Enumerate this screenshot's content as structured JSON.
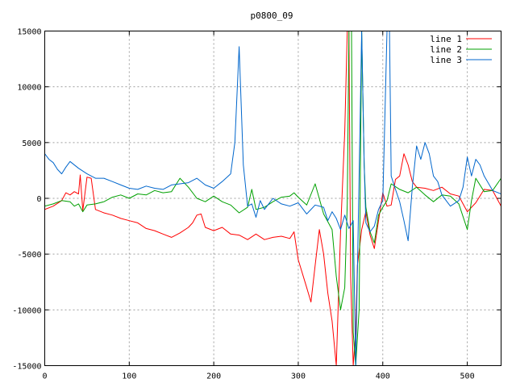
{
  "chart_data": {
    "type": "line",
    "title": "p0800_09",
    "xlabel": "",
    "ylabel": "",
    "xlim": [
      0,
      540
    ],
    "ylim": [
      -15000,
      15000
    ],
    "grid": true,
    "legend_position": "top-right",
    "x_ticks": [
      "0",
      "100",
      "200",
      "300",
      "400",
      "500"
    ],
    "y_ticks": [
      "15000",
      "10000",
      "5000",
      "0",
      "-5000",
      "-10000",
      "-15000"
    ],
    "series": [
      {
        "name": "line 1",
        "color": "#ff0000",
        "points": [
          [
            0,
            -1000
          ],
          [
            10,
            -700
          ],
          [
            20,
            -200
          ],
          [
            25,
            500
          ],
          [
            30,
            300
          ],
          [
            35,
            600
          ],
          [
            40,
            400
          ],
          [
            42,
            2100
          ],
          [
            45,
            -1100
          ],
          [
            50,
            1900
          ],
          [
            55,
            1800
          ],
          [
            60,
            -1000
          ],
          [
            70,
            -1300
          ],
          [
            80,
            -1500
          ],
          [
            90,
            -1800
          ],
          [
            100,
            -2000
          ],
          [
            110,
            -2200
          ],
          [
            120,
            -2700
          ],
          [
            130,
            -2900
          ],
          [
            140,
            -3200
          ],
          [
            150,
            -3500
          ],
          [
            160,
            -3100
          ],
          [
            170,
            -2600
          ],
          [
            175,
            -2200
          ],
          [
            180,
            -1500
          ],
          [
            185,
            -1400
          ],
          [
            190,
            -2600
          ],
          [
            200,
            -2900
          ],
          [
            210,
            -2600
          ],
          [
            220,
            -3200
          ],
          [
            230,
            -3300
          ],
          [
            240,
            -3700
          ],
          [
            250,
            -3200
          ],
          [
            260,
            -3700
          ],
          [
            270,
            -3500
          ],
          [
            280,
            -3400
          ],
          [
            290,
            -3600
          ],
          [
            295,
            -3000
          ],
          [
            300,
            -5500
          ],
          [
            310,
            -8000
          ],
          [
            315,
            -9300
          ],
          [
            320,
            -6000
          ],
          [
            325,
            -2800
          ],
          [
            330,
            -5000
          ],
          [
            335,
            -8500
          ],
          [
            340,
            -11000
          ],
          [
            345,
            -15000
          ],
          [
            350,
            -3000
          ],
          [
            355,
            6000
          ],
          [
            358,
            15000
          ],
          [
            360,
            15000
          ],
          [
            362,
            -7000
          ],
          [
            365,
            -15000
          ],
          [
            368,
            -12000
          ],
          [
            370,
            -6000
          ],
          [
            375,
            -2800
          ],
          [
            380,
            -1200
          ],
          [
            385,
            -3300
          ],
          [
            390,
            -4500
          ],
          [
            395,
            -2000
          ],
          [
            400,
            500
          ],
          [
            405,
            -700
          ],
          [
            410,
            -600
          ],
          [
            415,
            1700
          ],
          [
            420,
            2000
          ],
          [
            425,
            4000
          ],
          [
            430,
            3000
          ],
          [
            435,
            1500
          ],
          [
            440,
            1000
          ],
          [
            450,
            900
          ],
          [
            460,
            700
          ],
          [
            470,
            1000
          ],
          [
            480,
            400
          ],
          [
            490,
            200
          ],
          [
            500,
            -1200
          ],
          [
            510,
            -400
          ],
          [
            520,
            800
          ],
          [
            530,
            700
          ],
          [
            540,
            -700
          ]
        ]
      },
      {
        "name": "line 2",
        "color": "#00a000",
        "points": [
          [
            0,
            -700
          ],
          [
            10,
            -500
          ],
          [
            20,
            -200
          ],
          [
            30,
            -300
          ],
          [
            35,
            -700
          ],
          [
            40,
            -500
          ],
          [
            45,
            -1200
          ],
          [
            50,
            -600
          ],
          [
            60,
            -500
          ],
          [
            70,
            -300
          ],
          [
            80,
            100
          ],
          [
            90,
            300
          ],
          [
            100,
            0
          ],
          [
            110,
            400
          ],
          [
            120,
            300
          ],
          [
            130,
            700
          ],
          [
            140,
            500
          ],
          [
            150,
            600
          ],
          [
            160,
            1800
          ],
          [
            170,
            1000
          ],
          [
            180,
            0
          ],
          [
            190,
            -300
          ],
          [
            200,
            200
          ],
          [
            210,
            -300
          ],
          [
            220,
            -600
          ],
          [
            230,
            -1300
          ],
          [
            240,
            -800
          ],
          [
            245,
            800
          ],
          [
            250,
            -1000
          ],
          [
            260,
            -800
          ],
          [
            270,
            -300
          ],
          [
            280,
            100
          ],
          [
            290,
            200
          ],
          [
            295,
            500
          ],
          [
            300,
            100
          ],
          [
            310,
            -600
          ],
          [
            320,
            1300
          ],
          [
            330,
            -1400
          ],
          [
            340,
            -2800
          ],
          [
            345,
            -7000
          ],
          [
            350,
            -10000
          ],
          [
            355,
            -8000
          ],
          [
            358,
            -500
          ],
          [
            360,
            15000
          ],
          [
            363,
            15000
          ],
          [
            365,
            -12000
          ],
          [
            368,
            -15000
          ],
          [
            372,
            -10000
          ],
          [
            375,
            15000
          ],
          [
            378,
            3000
          ],
          [
            380,
            -800
          ],
          [
            385,
            -3000
          ],
          [
            390,
            -4000
          ],
          [
            395,
            -1500
          ],
          [
            400,
            -800
          ],
          [
            405,
            -200
          ],
          [
            410,
            1300
          ],
          [
            420,
            800
          ],
          [
            430,
            500
          ],
          [
            440,
            1000
          ],
          [
            450,
            300
          ],
          [
            460,
            -300
          ],
          [
            470,
            300
          ],
          [
            480,
            200
          ],
          [
            490,
            -500
          ],
          [
            500,
            -2800
          ],
          [
            505,
            -200
          ],
          [
            510,
            1800
          ],
          [
            520,
            600
          ],
          [
            530,
            700
          ],
          [
            540,
            1800
          ]
        ]
      },
      {
        "name": "line 3",
        "color": "#0066cc",
        "points": [
          [
            0,
            4000
          ],
          [
            5,
            3500
          ],
          [
            10,
            3200
          ],
          [
            15,
            2600
          ],
          [
            20,
            2200
          ],
          [
            25,
            2800
          ],
          [
            30,
            3300
          ],
          [
            40,
            2700
          ],
          [
            50,
            2200
          ],
          [
            60,
            1800
          ],
          [
            70,
            1800
          ],
          [
            80,
            1500
          ],
          [
            90,
            1200
          ],
          [
            100,
            900
          ],
          [
            110,
            800
          ],
          [
            120,
            1100
          ],
          [
            130,
            900
          ],
          [
            140,
            800
          ],
          [
            150,
            1200
          ],
          [
            160,
            1300
          ],
          [
            170,
            1400
          ],
          [
            180,
            1800
          ],
          [
            190,
            1200
          ],
          [
            200,
            900
          ],
          [
            210,
            1500
          ],
          [
            220,
            2200
          ],
          [
            225,
            5000
          ],
          [
            230,
            13600
          ],
          [
            235,
            3000
          ],
          [
            240,
            -700
          ],
          [
            245,
            -500
          ],
          [
            250,
            -1700
          ],
          [
            255,
            -200
          ],
          [
            260,
            -1000
          ],
          [
            270,
            0
          ],
          [
            280,
            -500
          ],
          [
            290,
            -700
          ],
          [
            300,
            -400
          ],
          [
            310,
            -1400
          ],
          [
            320,
            -600
          ],
          [
            330,
            -800
          ],
          [
            335,
            -2000
          ],
          [
            340,
            -1200
          ],
          [
            345,
            -1800
          ],
          [
            350,
            -2800
          ],
          [
            355,
            -1500
          ],
          [
            360,
            -2700
          ],
          [
            365,
            -2000
          ],
          [
            368,
            -15000
          ],
          [
            372,
            2000
          ],
          [
            375,
            15000
          ],
          [
            378,
            3000
          ],
          [
            380,
            -2200
          ],
          [
            385,
            -3000
          ],
          [
            390,
            -2500
          ],
          [
            395,
            -1000
          ],
          [
            400,
            -200
          ],
          [
            405,
            15000
          ],
          [
            408,
            15000
          ],
          [
            410,
            2000
          ],
          [
            415,
            800
          ],
          [
            420,
            -300
          ],
          [
            425,
            -2000
          ],
          [
            430,
            -3800
          ],
          [
            435,
            1000
          ],
          [
            440,
            4700
          ],
          [
            445,
            3500
          ],
          [
            450,
            5000
          ],
          [
            455,
            4000
          ],
          [
            460,
            2000
          ],
          [
            465,
            1500
          ],
          [
            470,
            300
          ],
          [
            480,
            -700
          ],
          [
            490,
            -200
          ],
          [
            495,
            1000
          ],
          [
            500,
            3700
          ],
          [
            505,
            2000
          ],
          [
            510,
            3500
          ],
          [
            515,
            3000
          ],
          [
            520,
            2000
          ],
          [
            530,
            700
          ],
          [
            540,
            400
          ]
        ]
      }
    ]
  }
}
